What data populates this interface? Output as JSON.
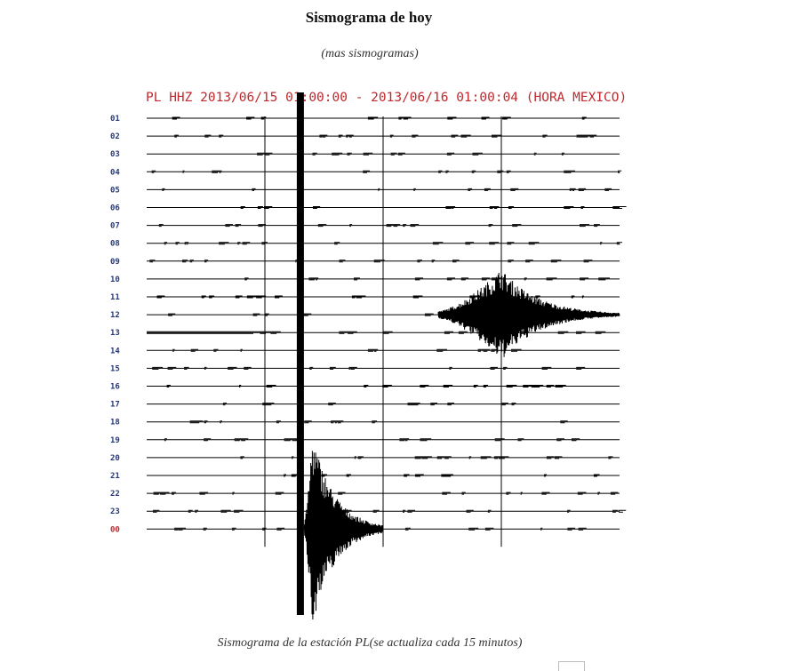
{
  "page": {
    "title": "Sismograma de hoy",
    "more_link": "(mas sismogramas)",
    "caption": "Sismograma de la estación PL(se actualiza cada 15 minutos)"
  },
  "colors": {
    "header_text": "#c0282d",
    "row_label": "#26397a",
    "row_label_alt": "#c0282d",
    "trace": "#000000",
    "secondary_trace": "#555555"
  },
  "chart_data": {
    "type": "seismogram",
    "header": "PL HHZ 2013/06/15 01:00:00 - 2013/06/16 01:00:04 (HORA MEXICO)",
    "row_labels": [
      "01",
      "02",
      "03",
      "04",
      "05",
      "06",
      "07",
      "08",
      "09",
      "10",
      "11",
      "12",
      "13",
      "14",
      "15",
      "16",
      "17",
      "18",
      "19",
      "20",
      "21",
      "22",
      "23",
      "00"
    ],
    "highlighted_row_label": "00",
    "minutes_per_row": 60,
    "grid_minute_marks": [
      15,
      30,
      45
    ],
    "grid": true,
    "events": [
      {
        "row": "12",
        "start_minute": 37,
        "peak_minute": 45,
        "end_minute": 60,
        "relative_amplitude": 0.6,
        "note": "event waveform on row 12"
      },
      {
        "row": "00",
        "start_minute": 20,
        "peak_minute": 21,
        "end_minute": 30,
        "relative_amplitude": 1.0,
        "note": "large event beginning row 00, clipped"
      }
    ],
    "saturated_marker_minute": 19.5
  }
}
